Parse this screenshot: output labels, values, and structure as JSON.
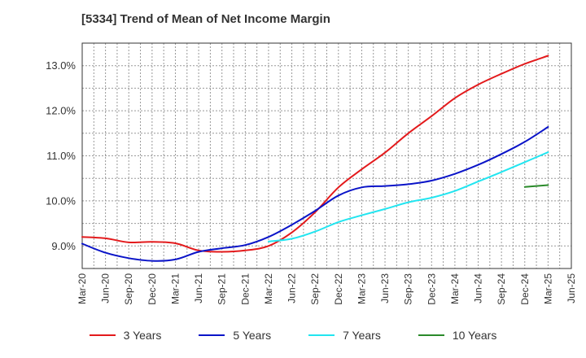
{
  "chart_data": {
    "type": "line",
    "title": "[5334]  Trend of Mean of Net Income Margin",
    "xlabel": "",
    "ylabel": "",
    "x_ticks": [
      "Mar-20",
      "Jun-20",
      "Sep-20",
      "Dec-20",
      "Mar-21",
      "Jun-21",
      "Sep-21",
      "Dec-21",
      "Mar-22",
      "Jun-22",
      "Sep-22",
      "Dec-22",
      "Mar-23",
      "Jun-23",
      "Sep-23",
      "Dec-23",
      "Mar-24",
      "Jun-24",
      "Sep-24",
      "Dec-24",
      "Mar-25",
      "Jun-25"
    ],
    "y_ticks": [
      9.0,
      10.0,
      11.0,
      12.0,
      13.0
    ],
    "y_tick_labels": [
      "9.0%",
      "10.0%",
      "11.0%",
      "12.0%",
      "13.0%"
    ],
    "ylim": [
      8.5,
      13.5
    ],
    "x_period_months": 3,
    "grid": true,
    "legend_position": "bottom",
    "series": [
      {
        "name": "3 Years",
        "color": "#e31a1c",
        "points": [
          [
            "Mar-20",
            9.2
          ],
          [
            "Jun-20",
            9.17
          ],
          [
            "Sep-20",
            9.08
          ],
          [
            "Dec-20",
            9.09
          ],
          [
            "Mar-21",
            9.06
          ],
          [
            "Jun-21",
            8.9
          ],
          [
            "Sep-21",
            8.87
          ],
          [
            "Dec-21",
            8.9
          ],
          [
            "Mar-22",
            9.0
          ],
          [
            "Jun-22",
            9.3
          ],
          [
            "Sep-22",
            9.75
          ],
          [
            "Dec-22",
            10.3
          ],
          [
            "Mar-23",
            10.7
          ],
          [
            "Jun-23",
            11.07
          ],
          [
            "Sep-23",
            11.5
          ],
          [
            "Dec-23",
            11.88
          ],
          [
            "Mar-24",
            12.28
          ],
          [
            "Jun-24",
            12.58
          ],
          [
            "Sep-24",
            12.82
          ],
          [
            "Dec-24",
            13.04
          ],
          [
            "Mar-25",
            13.22
          ]
        ]
      },
      {
        "name": "5 Years",
        "color": "#0a14c8",
        "points": [
          [
            "Mar-20",
            9.05
          ],
          [
            "Jun-20",
            8.85
          ],
          [
            "Sep-20",
            8.73
          ],
          [
            "Dec-20",
            8.67
          ],
          [
            "Mar-21",
            8.7
          ],
          [
            "Jun-21",
            8.87
          ],
          [
            "Sep-21",
            8.95
          ],
          [
            "Dec-21",
            9.02
          ],
          [
            "Mar-22",
            9.2
          ],
          [
            "Jun-22",
            9.47
          ],
          [
            "Sep-22",
            9.78
          ],
          [
            "Dec-22",
            10.12
          ],
          [
            "Mar-23",
            10.3
          ],
          [
            "Jun-23",
            10.33
          ],
          [
            "Sep-23",
            10.37
          ],
          [
            "Dec-23",
            10.45
          ],
          [
            "Mar-24",
            10.6
          ],
          [
            "Jun-24",
            10.8
          ],
          [
            "Sep-24",
            11.04
          ],
          [
            "Dec-24",
            11.31
          ],
          [
            "Mar-25",
            11.64
          ]
        ]
      },
      {
        "name": "7 Years",
        "color": "#22e5f0",
        "points": [
          [
            "Mar-22",
            9.1
          ],
          [
            "Jun-22",
            9.16
          ],
          [
            "Sep-22",
            9.32
          ],
          [
            "Dec-22",
            9.53
          ],
          [
            "Mar-23",
            9.68
          ],
          [
            "Jun-23",
            9.82
          ],
          [
            "Sep-23",
            9.97
          ],
          [
            "Dec-23",
            10.07
          ],
          [
            "Mar-24",
            10.22
          ],
          [
            "Jun-24",
            10.43
          ],
          [
            "Sep-24",
            10.64
          ],
          [
            "Dec-24",
            10.86
          ],
          [
            "Mar-25",
            11.08
          ]
        ]
      },
      {
        "name": "10 Years",
        "color": "#2a8a2a",
        "points": [
          [
            "Dec-24",
            10.31
          ],
          [
            "Mar-25",
            10.35
          ]
        ]
      }
    ]
  }
}
